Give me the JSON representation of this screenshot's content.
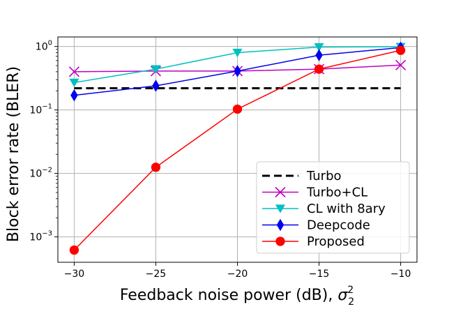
{
  "chart_data": {
    "type": "line",
    "title": "",
    "xlabel": "Feedback noise power (dB), ",
    "xlabel_symbol": "σ",
    "xlabel_sub": "2",
    "xlabel_sup": "2",
    "ylabel": "Block error rate (BLER)",
    "x": [
      -30,
      -25,
      -20,
      -15,
      -10
    ],
    "xlim": [
      -31,
      -9
    ],
    "ylim_log10": [
      -3.4,
      0.15
    ],
    "y_scale": "log",
    "x_ticks": [
      {
        "value": -30,
        "label": "−30"
      },
      {
        "value": -25,
        "label": "−25"
      },
      {
        "value": -20,
        "label": "−20"
      },
      {
        "value": -15,
        "label": "−15"
      },
      {
        "value": -10,
        "label": "−10"
      }
    ],
    "y_ticks": [
      {
        "exp": -3,
        "base": "10",
        "power": "−3"
      },
      {
        "exp": -2,
        "base": "10",
        "power": "−2"
      },
      {
        "exp": -1,
        "base": "10",
        "power": "−1"
      },
      {
        "exp": 0,
        "base": "10",
        "power": "0"
      }
    ],
    "grid": true,
    "legend_position": "lower-right",
    "series": [
      {
        "name": "Turbo",
        "color": "#000000",
        "marker": "none",
        "dash": "dashed",
        "values": [
          0.22,
          0.22,
          0.22,
          0.22,
          0.22
        ]
      },
      {
        "name": "Turbo+CL",
        "color": "#bf00bf",
        "marker": "x",
        "dash": "solid",
        "values": [
          0.4,
          0.41,
          0.41,
          0.44,
          0.51
        ]
      },
      {
        "name": "CL with 8ary",
        "color": "#00bfbf",
        "marker": "triangle-down",
        "dash": "solid",
        "values": [
          0.27,
          0.44,
          0.8,
          0.98,
          0.99
        ]
      },
      {
        "name": "Deepcode",
        "color": "#0000ee",
        "marker": "diamond",
        "dash": "solid",
        "values": [
          0.17,
          0.24,
          0.41,
          0.73,
          0.96
        ]
      },
      {
        "name": "Proposed",
        "color": "#ff0000",
        "marker": "circle",
        "dash": "solid",
        "values": [
          0.00062,
          0.0125,
          0.103,
          0.44,
          0.87
        ]
      }
    ]
  }
}
